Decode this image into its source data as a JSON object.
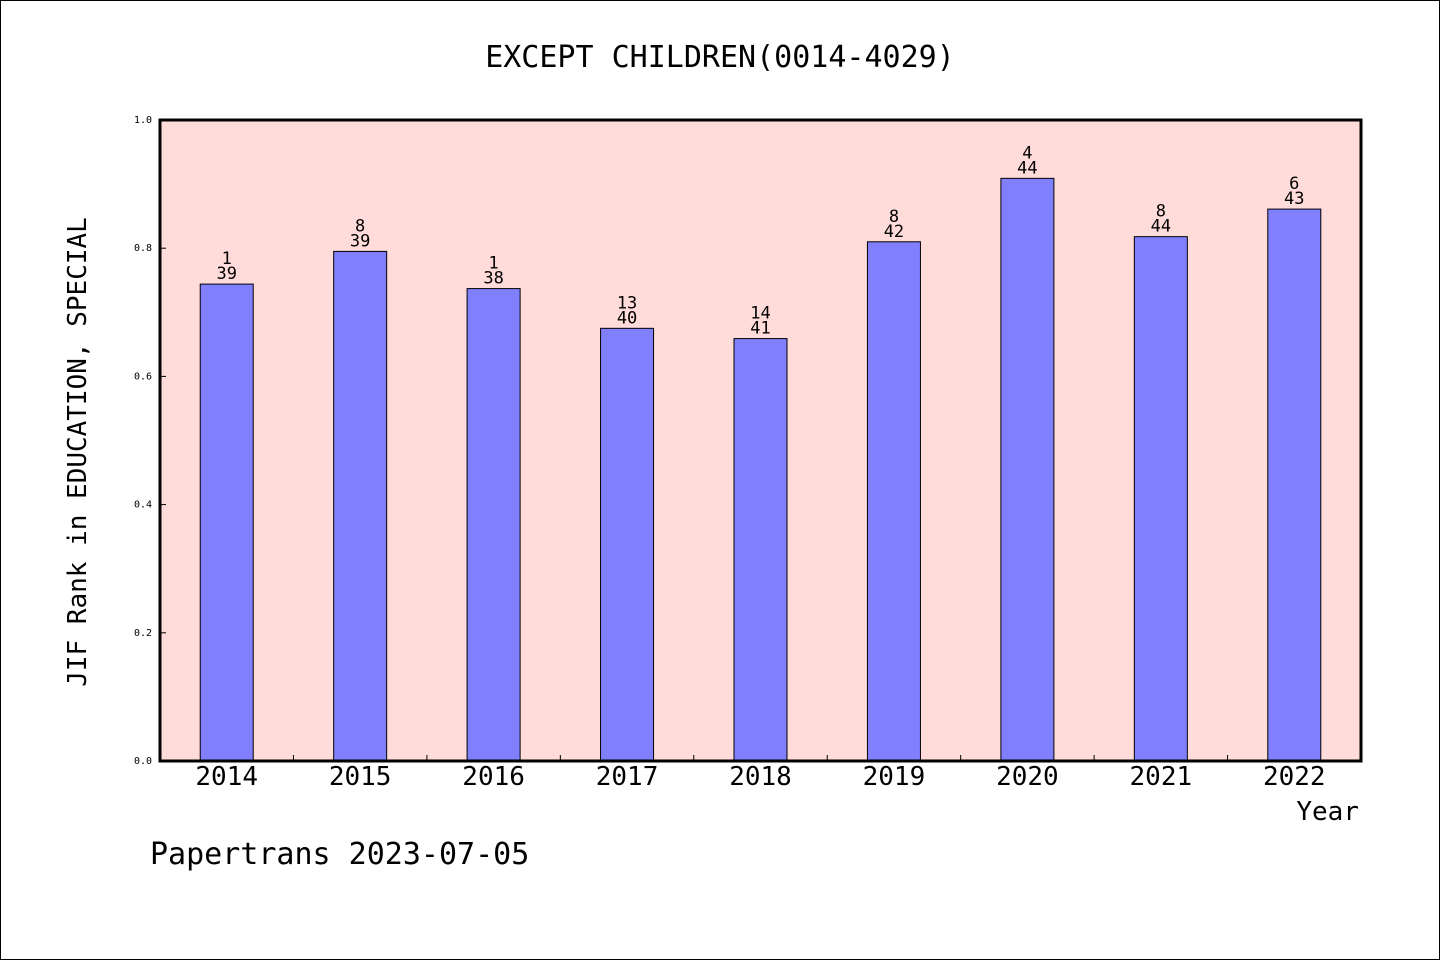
{
  "chart_data": {
    "type": "bar",
    "title": "EXCEPT CHILDREN(0014-4029)",
    "xlabel": "Year",
    "ylabel": "JIF Rank in EDUCATION, SPECIAL",
    "categories": [
      "2014",
      "2015",
      "2016",
      "2017",
      "2018",
      "2019",
      "2020",
      "2021",
      "2022"
    ],
    "values": [
      0.744,
      0.795,
      0.737,
      0.675,
      0.659,
      0.81,
      0.909,
      0.818,
      0.861
    ],
    "rank_labels": [
      {
        "rank": "1",
        "total": "39"
      },
      {
        "rank": "8",
        "total": "39"
      },
      {
        "rank": "1",
        "total": "38"
      },
      {
        "rank": "13",
        "total": "40"
      },
      {
        "rank": "14",
        "total": "41"
      },
      {
        "rank": "8",
        "total": "42"
      },
      {
        "rank": "4",
        "total": "44"
      },
      {
        "rank": "8",
        "total": "44"
      },
      {
        "rank": "6",
        "total": "43"
      }
    ],
    "ylim": [
      0,
      1.0
    ],
    "yticks": [
      "0.0",
      "0.2",
      "0.4",
      "0.6",
      "0.8",
      "1.0"
    ],
    "grid": false,
    "colors": {
      "plot_background": "#ffdbd9",
      "bar_fill": "#8080ff",
      "bar_stroke": "#000000"
    }
  },
  "footer": {
    "watermark": "Papertrans 2023-07-05"
  }
}
